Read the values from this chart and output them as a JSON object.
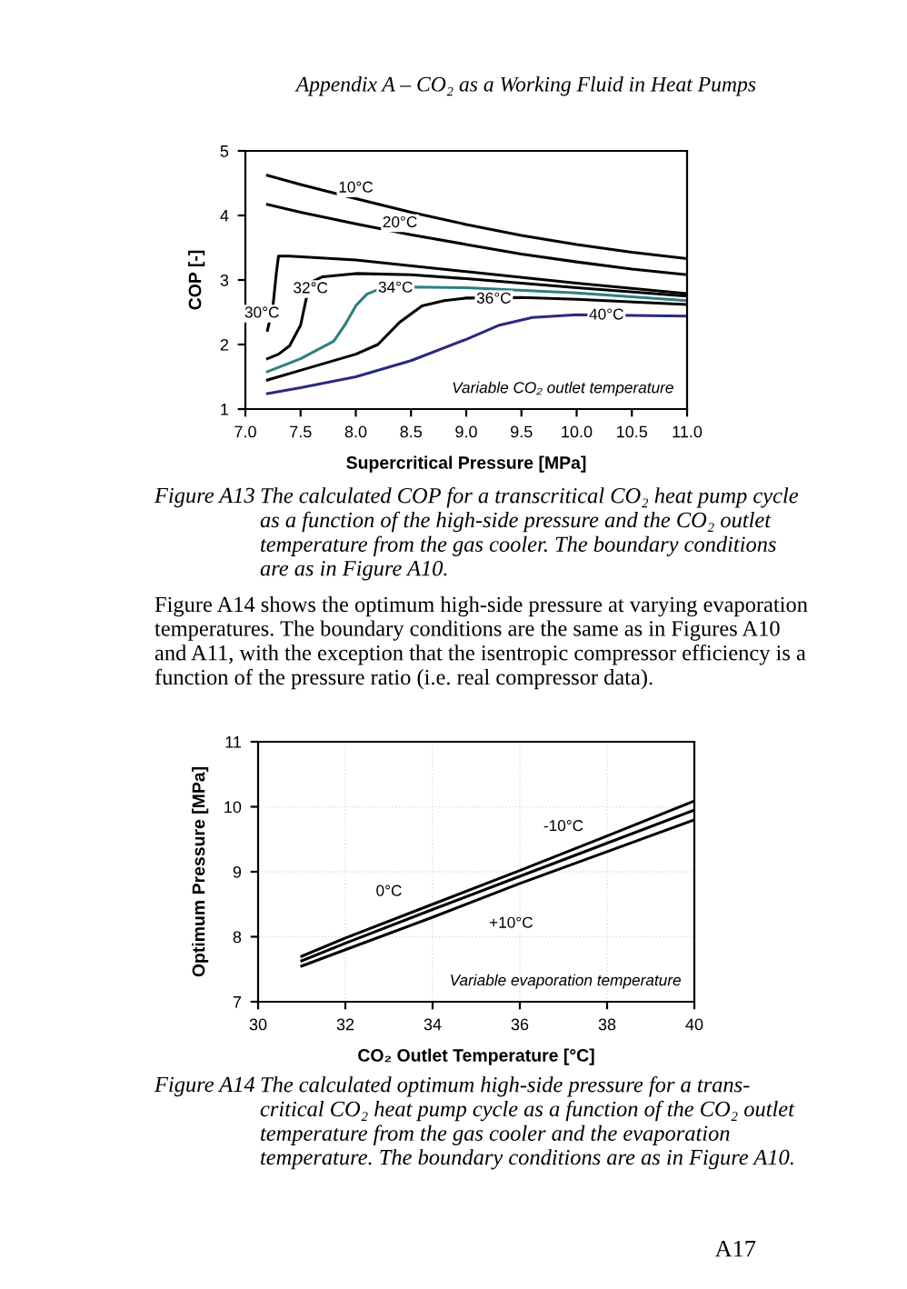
{
  "chart_data": [
    {
      "type": "line",
      "xlabel": "Supercritical Pressure [MPa]",
      "ylabel": "COP [-]",
      "xlim": [
        7.0,
        11.0
      ],
      "ylim": [
        1,
        5
      ],
      "xticks": [
        {
          "value": 7.0,
          "label": "7.0"
        },
        {
          "value": 7.5,
          "label": "7.5"
        },
        {
          "value": 8.0,
          "label": "8.0"
        },
        {
          "value": 8.5,
          "label": "8.5"
        },
        {
          "value": 9.0,
          "label": "9.0"
        },
        {
          "value": 9.5,
          "label": "9.5"
        },
        {
          "value": 10.0,
          "label": "10.0"
        },
        {
          "value": 10.5,
          "label": "10.5"
        },
        {
          "value": 11.0,
          "label": "11.0"
        }
      ],
      "yticks": [
        1,
        2,
        3,
        4,
        5
      ],
      "series": [
        {
          "color": "#000000",
          "x": [
            7.2,
            7.5,
            8.0,
            8.5,
            9.0,
            9.5,
            10.0,
            10.5,
            11.0
          ],
          "values": [
            4.62,
            4.48,
            4.26,
            4.05,
            3.86,
            3.69,
            3.55,
            3.43,
            3.33
          ]
        },
        {
          "color": "#000000",
          "x": [
            7.2,
            7.5,
            8.0,
            8.5,
            9.0,
            9.5,
            10.0,
            10.5,
            11.0
          ],
          "values": [
            4.17,
            4.05,
            3.87,
            3.7,
            3.55,
            3.4,
            3.28,
            3.17,
            3.08
          ]
        },
        {
          "color": "#000000",
          "x": [
            7.2,
            7.25,
            7.28,
            7.3,
            7.4,
            8.0,
            9.0,
            10.0,
            11.0
          ],
          "values": [
            2.22,
            2.6,
            3.1,
            3.37,
            3.37,
            3.31,
            3.13,
            2.95,
            2.79
          ]
        },
        {
          "color": "#000000",
          "x": [
            7.2,
            7.3,
            7.4,
            7.5,
            7.55,
            7.6,
            7.7,
            8.0,
            8.5,
            9.0,
            10.0,
            11.0
          ],
          "values": [
            1.78,
            1.85,
            1.98,
            2.3,
            2.7,
            2.97,
            3.05,
            3.1,
            3.08,
            3.02,
            2.88,
            2.75
          ]
        },
        {
          "color": "#2e7f7f",
          "x": [
            7.2,
            7.5,
            7.8,
            7.9,
            8.0,
            8.1,
            8.2,
            8.5,
            9.0,
            10.0,
            11.0
          ],
          "values": [
            1.58,
            1.78,
            2.05,
            2.3,
            2.6,
            2.78,
            2.85,
            2.89,
            2.88,
            2.8,
            2.68
          ]
        },
        {
          "color": "#000000",
          "x": [
            7.2,
            7.5,
            8.0,
            8.2,
            8.4,
            8.6,
            8.8,
            9.0,
            9.5,
            10.0,
            11.0
          ],
          "values": [
            1.45,
            1.6,
            1.85,
            2.0,
            2.35,
            2.6,
            2.68,
            2.72,
            2.73,
            2.7,
            2.62
          ]
        },
        {
          "color": "#2a2a80",
          "x": [
            7.2,
            7.5,
            8.0,
            8.5,
            9.0,
            9.3,
            9.6,
            10.0,
            10.5,
            11.0
          ],
          "values": [
            1.24,
            1.33,
            1.5,
            1.75,
            2.08,
            2.3,
            2.42,
            2.46,
            2.45,
            2.44
          ]
        }
      ],
      "annotations": [
        "Appendix A – CO₂ as a Working Fluid in Heat Pumps",
        "Variable CO₂ outlet temperature",
        "Figure A13",
        "The calculated COP for a transcritical CO₂ heat pump cycle\nas a function of the high-side pressure and the CO₂ outlet\ntemperature from the gas cooler. The boundary conditions\nare as in Figure A10.",
        "Figure A14 shows the optimum high-side pressure at varying evaporation\ntemperatures. The boundary conditions are the same as in Figures A10\nand A11, with the exception that the isentropic compressor efficiency is a\nfunction of the pressure ratio (i.e. real compressor data).",
        {
          "text": "10°C",
          "x": 8.0,
          "y": 4.42
        },
        {
          "text": "20°C",
          "x": 8.4,
          "y": 3.88
        },
        {
          "text": "30°C",
          "x": 7.15,
          "y": 2.48
        },
        {
          "text": "32°C",
          "x": 7.59,
          "y": 2.86
        },
        {
          "text": "34°C",
          "x": 8.36,
          "y": 2.87
        },
        {
          "text": "36°C",
          "x": 9.25,
          "y": 2.7
        },
        {
          "text": "40°C",
          "x": 10.27,
          "y": 2.45
        }
      ]
    },
    {
      "type": "line",
      "xlabel": "CO₂ Outlet Temperature [°C]",
      "ylabel": "Optimum Pressure [MPa]",
      "xlim": [
        30,
        40
      ],
      "ylim": [
        7,
        11
      ],
      "xticks": [
        30,
        32,
        34,
        36,
        38,
        40
      ],
      "yticks": [
        7,
        8,
        9,
        10,
        11
      ],
      "grid": true,
      "series": [
        {
          "color": "#000000",
          "x": [
            31,
            32,
            34,
            36,
            38,
            40
          ],
          "values": [
            7.7,
            7.98,
            8.5,
            9.02,
            9.55,
            10.09
          ]
        },
        {
          "color": "#000000",
          "x": [
            31,
            32,
            34,
            36,
            38,
            40
          ],
          "values": [
            7.63,
            7.9,
            8.42,
            8.93,
            9.44,
            9.95
          ]
        },
        {
          "color": "#000000",
          "x": [
            31,
            32,
            34,
            36,
            38,
            40
          ],
          "values": [
            7.55,
            7.8,
            8.3,
            8.82,
            9.31,
            9.8
          ]
        }
      ],
      "annotations": [
        "Variable evaporation temperature",
        "Figure A14",
        "The calculated optimum high-side pressure for a trans-\ncritical CO₂ heat pump cycle as a function of the CO₂ outlet\ntemperature from the gas cooler and the evaporation\ntemperature. The boundary conditions are as in Figure A10.",
        "A17",
        {
          "text": "-10°C",
          "x": 37.0,
          "y": 9.69
        },
        {
          "text": "0°C",
          "x": 33.0,
          "y": 8.69
        },
        {
          "text": "+10°C",
          "x": 35.8,
          "y": 8.2
        }
      ]
    }
  ]
}
